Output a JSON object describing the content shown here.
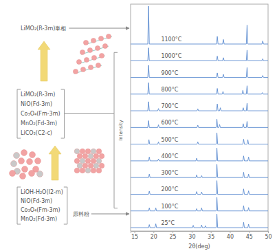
{
  "chart_data": {
    "type": "line",
    "x_label": "2θ(deg)",
    "y_label": "Intensity",
    "xlim": [
      14,
      50
    ],
    "xticks": [
      15,
      20,
      25,
      30,
      35,
      40,
      45,
      50
    ],
    "ylim": [
      0,
      100
    ],
    "tick_labels": "x",
    "color": "#5b8bd0",
    "series": [
      {
        "name": "25°C",
        "x": [
          14,
          18.7,
          18.9,
          19.1,
          20.4,
          20.6,
          20.8,
          30.2,
          30.4,
          30.6,
          32.4,
          32.6,
          32.8,
          33.4,
          33.6,
          33.8,
          36.4,
          36.6,
          36.8,
          43.4,
          43.6,
          43.8,
          44.7,
          44.9,
          45.1,
          50
        ],
        "values": [
          0,
          0,
          8,
          0,
          0,
          10,
          0,
          0,
          6,
          0,
          0,
          7,
          0,
          0,
          5,
          0,
          0,
          36,
          0,
          0,
          14,
          0,
          0,
          9,
          0,
          0
        ]
      },
      {
        "name": "100°C",
        "x": [
          14,
          18.7,
          18.9,
          19.1,
          20.4,
          20.6,
          20.8,
          31.1,
          31.3,
          31.5,
          32.4,
          32.6,
          32.8,
          36.4,
          36.6,
          36.8,
          43.4,
          43.6,
          43.8,
          44.7,
          44.9,
          45.1,
          50
        ],
        "values": [
          0,
          0,
          8,
          0,
          0,
          8,
          0,
          0,
          6,
          0,
          0,
          8,
          0,
          0,
          36,
          0,
          0,
          14,
          0,
          0,
          9,
          0,
          0
        ]
      },
      {
        "name": "200°C",
        "x": [
          14,
          18.7,
          18.9,
          19.1,
          31.1,
          31.3,
          31.5,
          32.4,
          32.6,
          32.8,
          36.4,
          36.6,
          36.8,
          43.4,
          43.6,
          43.8,
          44.7,
          44.9,
          45.1,
          50
        ],
        "values": [
          0,
          0,
          8,
          0,
          0,
          7,
          0,
          0,
          6,
          0,
          0,
          36,
          0,
          0,
          14,
          0,
          0,
          9,
          0,
          0
        ]
      },
      {
        "name": "300°C",
        "x": [
          14,
          18.7,
          18.9,
          19.1,
          31.1,
          31.3,
          31.5,
          32.4,
          32.6,
          32.8,
          36.4,
          36.6,
          36.8,
          43.4,
          43.6,
          43.8,
          44.7,
          44.9,
          45.1,
          50
        ],
        "values": [
          0,
          0,
          9,
          0,
          0,
          7,
          0,
          0,
          5,
          0,
          0,
          35,
          0,
          0,
          14,
          0,
          0,
          9,
          0,
          0
        ]
      },
      {
        "name": "400°C",
        "x": [
          14,
          18.7,
          18.9,
          19.1,
          21.1,
          21.3,
          21.5,
          31.1,
          31.3,
          31.5,
          36.4,
          36.6,
          36.8,
          43.4,
          43.6,
          43.8,
          44.7,
          44.9,
          45.1,
          50
        ],
        "values": [
          0,
          0,
          10,
          0,
          0,
          5,
          0,
          0,
          7,
          0,
          0,
          34,
          0,
          0,
          13,
          0,
          0,
          10,
          0,
          0
        ]
      },
      {
        "name": "500°C",
        "x": [
          14,
          18.6,
          18.8,
          19.0,
          21.1,
          21.3,
          21.5,
          31.4,
          31.6,
          31.8,
          36.4,
          36.6,
          36.8,
          43.4,
          43.6,
          43.8,
          44.5,
          44.7,
          44.9,
          50
        ],
        "values": [
          0,
          0,
          12,
          0,
          0,
          6,
          0,
          0,
          6,
          0,
          0,
          30,
          0,
          0,
          13,
          0,
          0,
          12,
          0,
          0
        ]
      },
      {
        "name": "600°C",
        "x": [
          14,
          18.5,
          18.7,
          18.9,
          21.1,
          21.3,
          21.5,
          31.4,
          31.6,
          31.8,
          36.4,
          36.6,
          36.8,
          37.1,
          37.3,
          37.5,
          43.3,
          43.5,
          43.7,
          44.3,
          44.5,
          44.7,
          50
        ],
        "values": [
          0,
          0,
          18,
          0,
          0,
          7,
          0,
          0,
          6,
          0,
          0,
          22,
          0,
          0,
          8,
          0,
          0,
          10,
          0,
          0,
          16,
          0,
          0
        ]
      },
      {
        "name": "700°C",
        "x": [
          14,
          18.5,
          18.7,
          18.9,
          21.1,
          21.3,
          21.5,
          31.4,
          31.6,
          31.8,
          36.5,
          36.7,
          36.9,
          37.3,
          37.5,
          37.7,
          43.3,
          43.5,
          43.7,
          44.3,
          44.5,
          44.7,
          50
        ],
        "values": [
          0,
          0,
          24,
          0,
          0,
          6,
          0,
          0,
          5,
          0,
          0,
          18,
          0,
          0,
          8,
          0,
          0,
          8,
          0,
          0,
          20,
          0,
          0
        ]
      },
      {
        "name": "800°C",
        "x": [
          14,
          18.5,
          18.7,
          18.9,
          36.5,
          36.7,
          36.9,
          38.0,
          38.2,
          38.4,
          43.2,
          43.4,
          43.6,
          44.3,
          44.5,
          44.7,
          48.3,
          48.5,
          48.7,
          50
        ],
        "values": [
          0,
          0,
          30,
          0,
          0,
          15,
          0,
          0,
          7,
          0,
          0,
          10,
          0,
          0,
          22,
          0,
          0,
          4,
          0,
          0
        ]
      },
      {
        "name": "900°C",
        "x": [
          14,
          18.5,
          18.7,
          18.9,
          36.5,
          36.7,
          36.9,
          38.1,
          38.3,
          38.5,
          44.3,
          44.5,
          44.7,
          48.4,
          48.6,
          48.8,
          50
        ],
        "values": [
          0,
          0,
          32,
          0,
          0,
          12,
          0,
          0,
          8,
          0,
          0,
          26,
          0,
          0,
          5,
          0,
          0
        ]
      },
      {
        "name": "1000°C",
        "x": [
          14,
          18.5,
          18.7,
          18.9,
          36.5,
          36.7,
          36.9,
          38.1,
          38.3,
          38.5,
          44.3,
          44.5,
          44.7,
          48.4,
          48.6,
          48.8,
          50
        ],
        "values": [
          0,
          0,
          34,
          0,
          0,
          12,
          0,
          0,
          8,
          0,
          0,
          28,
          0,
          0,
          5,
          0,
          0
        ]
      },
      {
        "name": "1100°C",
        "x": [
          14,
          18.5,
          18.7,
          18.9,
          36.5,
          36.7,
          36.9,
          38.1,
          38.3,
          38.5,
          44.3,
          44.5,
          44.7,
          48.4,
          48.6,
          48.8,
          50
        ],
        "values": [
          0,
          0,
          100,
          0,
          0,
          20,
          0,
          0,
          12,
          0,
          0,
          50,
          0,
          0,
          8,
          0,
          0
        ]
      }
    ],
    "annotations": [
      {
        "lines": [
          "LiMO₂(R-3m)単相"
        ]
      },
      {
        "lines": [
          "LiMO₂(R-3m)",
          "NiO(Fd-3m)",
          "Co₃O₄(Fm-3m)",
          "MnO₂(Fd-3m)",
          "LiCO₃(C2-c)"
        ]
      },
      {
        "lines": [
          "LiOH-H₂O(I2-m)",
          "NiO(Fd-3m)",
          "Co₃O₄(Fm-3m)",
          "MnO₂(Fd-3m)"
        ]
      },
      {
        "lines": [
          "原料粉"
        ]
      }
    ]
  }
}
